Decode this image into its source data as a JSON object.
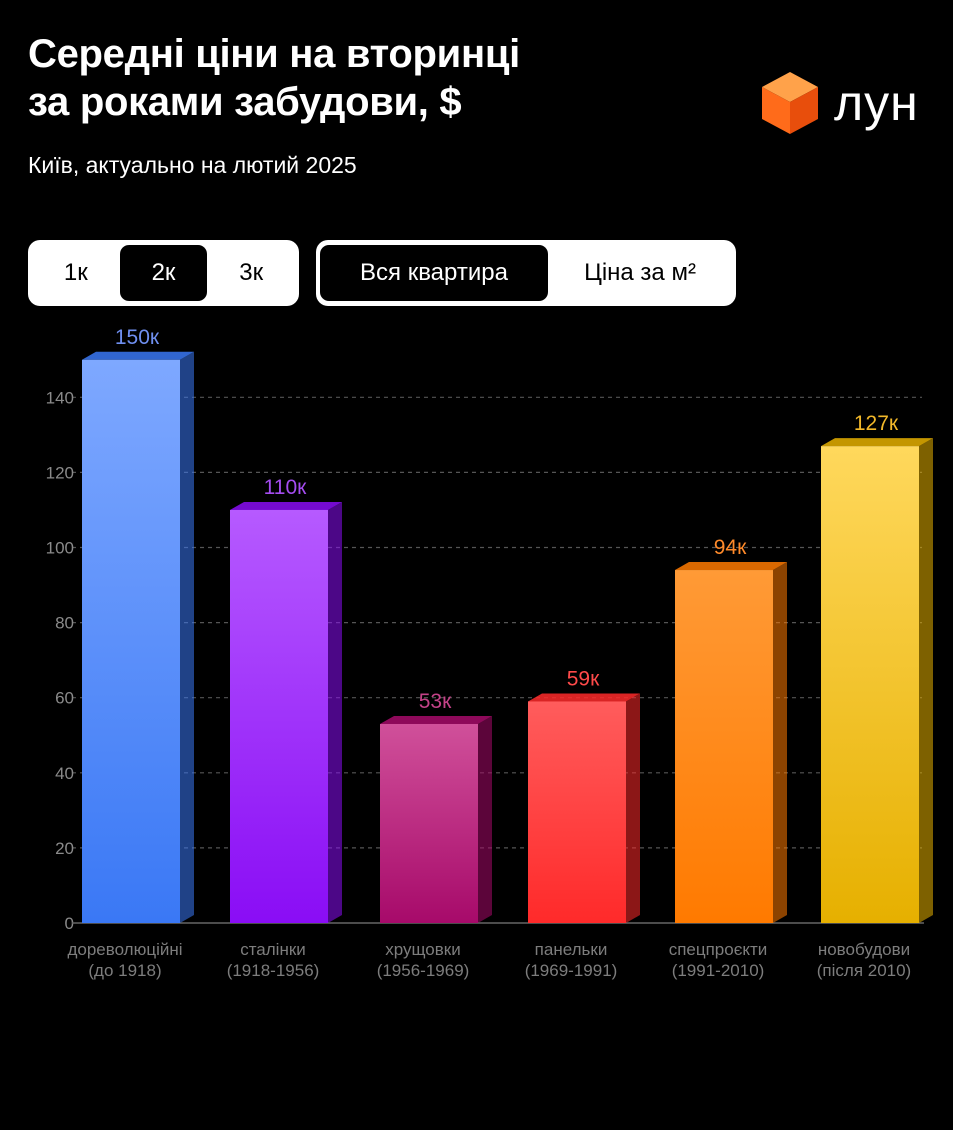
{
  "title_line1": "Середні ціни на вторинці",
  "title_line2": "за роками забудови, $",
  "subtitle": "Київ, актуально на лютий 2025",
  "logo_text": "лун",
  "room_toggle": {
    "options": [
      "1к",
      "2к",
      "3к"
    ],
    "selected": "2к"
  },
  "price_toggle": {
    "options": [
      "Вся квартира",
      "Ціна за м²"
    ],
    "selected": "Вся квартира"
  },
  "chart_data": {
    "type": "bar",
    "categories": [
      [
        "дореволюційні",
        "(до 1918)"
      ],
      [
        "сталінки",
        "(1918-1956)"
      ],
      [
        "хрущовки",
        "(1956-1969)"
      ],
      [
        "панельки",
        "(1969-1991)"
      ],
      [
        "спецпроєкти",
        "(1991-2010)"
      ],
      [
        "новобудови",
        "(після 2010)"
      ]
    ],
    "values": [
      150,
      110,
      53,
      59,
      94,
      127
    ],
    "value_labels": [
      "150к",
      "110к",
      "53к",
      "59к",
      "94к",
      "127к"
    ],
    "colors_top": [
      "#7ea8ff",
      "#b65aff",
      "#d0509a",
      "#ff5c5c",
      "#ff9a36",
      "#ffd85c"
    ],
    "colors_bottom": [
      "#3a78f5",
      "#8a0df5",
      "#a70a6a",
      "#ff2a2a",
      "#ff7a00",
      "#e6b000"
    ],
    "label_colors": [
      "#6f8ff0",
      "#a44cf0",
      "#c44288",
      "#ff4a4a",
      "#ff8a2a",
      "#f2b82a"
    ],
    "yticks": [
      0,
      20,
      40,
      60,
      80,
      100,
      120,
      140
    ],
    "ylim": [
      0,
      150
    ],
    "grid": true
  }
}
